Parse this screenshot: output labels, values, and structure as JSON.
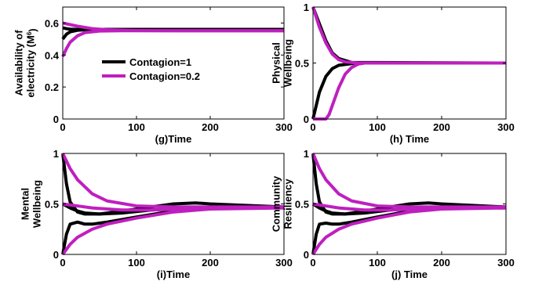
{
  "colors": {
    "contagion1": "#000000",
    "contagion02": "#bf1fbf"
  },
  "legend": {
    "items": [
      {
        "label": "Contagion=1",
        "color": "#000000"
      },
      {
        "label": "Contagion=0.2",
        "color": "#bf1fbf"
      }
    ]
  },
  "chart_data": [
    {
      "type": "line",
      "xlabel": "(g)Time",
      "ylabel_lines": [
        "Availability of",
        "electricity (M",
        "6",
        ")"
      ],
      "xlim": [
        0,
        300
      ],
      "ylim": [
        0,
        0.7
      ],
      "xticks": [
        0,
        100,
        200,
        300
      ],
      "yticks": [
        0,
        0.2,
        0.4,
        0.6
      ],
      "ytick_labels": [
        "0",
        "0.2",
        "0.4",
        "0.6"
      ],
      "legend_placement": "center",
      "series": [
        {
          "group": "Contagion=1",
          "color": "#000000",
          "x": [
            0,
            5,
            10,
            20,
            40,
            70,
            100,
            300
          ],
          "y": [
            0.5,
            0.53,
            0.545,
            0.555,
            0.56,
            0.56,
            0.56,
            0.56
          ]
        },
        {
          "group": "Contagion=1",
          "color": "#000000",
          "x": [
            0,
            5,
            10,
            20,
            40,
            70,
            100,
            300
          ],
          "y": [
            0.57,
            0.565,
            0.562,
            0.56,
            0.56,
            0.56,
            0.56,
            0.56
          ]
        },
        {
          "group": "Contagion=0.2",
          "color": "#bf1fbf",
          "x": [
            0,
            10,
            20,
            40,
            60,
            80,
            100,
            150,
            300
          ],
          "y": [
            0.6,
            0.59,
            0.58,
            0.565,
            0.558,
            0.555,
            0.553,
            0.552,
            0.552
          ]
        },
        {
          "group": "Contagion=0.2",
          "color": "#bf1fbf",
          "x": [
            0,
            5,
            10,
            20,
            30,
            50,
            80,
            120,
            300
          ],
          "y": [
            0.39,
            0.44,
            0.48,
            0.52,
            0.54,
            0.55,
            0.552,
            0.552,
            0.552
          ]
        }
      ]
    },
    {
      "type": "line",
      "xlabel": "(h) Time",
      "ylabel_lines": [
        "Physical",
        "Wellbeing"
      ],
      "xlim": [
        0,
        300
      ],
      "ylim": [
        0,
        1
      ],
      "xticks": [
        0,
        100,
        200,
        300
      ],
      "yticks": [
        0,
        0.5,
        1
      ],
      "ytick_labels": [
        "0",
        "0.5",
        "1"
      ],
      "series": [
        {
          "group": "Contagion=1",
          "color": "#000000",
          "x": [
            0,
            5,
            10,
            20,
            30,
            40,
            60,
            80,
            300
          ],
          "y": [
            0,
            0.12,
            0.24,
            0.38,
            0.45,
            0.48,
            0.495,
            0.5,
            0.5
          ]
        },
        {
          "group": "Contagion=1",
          "color": "#000000",
          "x": [
            0,
            10,
            20,
            30,
            40,
            60,
            300
          ],
          "y": [
            1,
            0.85,
            0.7,
            0.59,
            0.54,
            0.505,
            0.5
          ]
        },
        {
          "group": "Contagion=0.2",
          "color": "#bf1fbf",
          "x": [
            0,
            10,
            20,
            25,
            30,
            40,
            50,
            60,
            70,
            80,
            300
          ],
          "y": [
            0,
            0,
            0,
            0.04,
            0.12,
            0.28,
            0.4,
            0.46,
            0.49,
            0.5,
            0.5
          ]
        },
        {
          "group": "Contagion=0.2",
          "color": "#bf1fbf",
          "x": [
            0,
            10,
            20,
            30,
            40,
            50,
            70,
            300
          ],
          "y": [
            1,
            0.82,
            0.68,
            0.58,
            0.53,
            0.51,
            0.5,
            0.5
          ]
        }
      ]
    },
    {
      "type": "line",
      "xlabel": "(i)Time",
      "ylabel_lines": [
        "Mental",
        "Wellbeing"
      ],
      "xlim": [
        0,
        300
      ],
      "ylim": [
        0,
        1
      ],
      "xticks": [
        0,
        100,
        200,
        300
      ],
      "yticks": [
        0,
        0.5,
        1
      ],
      "ytick_labels": [
        "0",
        "0.5",
        "1"
      ],
      "series": [
        {
          "group": "Contagion=1",
          "color": "#000000",
          "x": [
            0,
            5,
            10,
            20,
            30,
            40,
            60,
            100,
            150,
            200,
            300
          ],
          "y": [
            0,
            0.2,
            0.3,
            0.32,
            0.3,
            0.3,
            0.32,
            0.37,
            0.43,
            0.47,
            0.46
          ]
        },
        {
          "group": "Contagion=1",
          "color": "#000000",
          "x": [
            0,
            5,
            10,
            20,
            30,
            50,
            100,
            150,
            180,
            200,
            300
          ],
          "y": [
            1,
            0.7,
            0.52,
            0.42,
            0.4,
            0.4,
            0.45,
            0.5,
            0.51,
            0.5,
            0.47
          ]
        },
        {
          "group": "Contagion=1",
          "color": "#000000",
          "x": [
            0,
            10,
            20,
            30,
            50,
            80,
            120,
            200,
            300
          ],
          "y": [
            0.5,
            0.46,
            0.43,
            0.41,
            0.4,
            0.41,
            0.44,
            0.47,
            0.47
          ]
        },
        {
          "group": "Contagion=0.2",
          "color": "#bf1fbf",
          "x": [
            0,
            10,
            20,
            40,
            60,
            100,
            150,
            200,
            300
          ],
          "y": [
            0,
            0.1,
            0.17,
            0.25,
            0.3,
            0.36,
            0.42,
            0.45,
            0.46
          ]
        },
        {
          "group": "Contagion=0.2",
          "color": "#bf1fbf",
          "x": [
            0,
            10,
            20,
            40,
            60,
            100,
            150,
            200,
            300
          ],
          "y": [
            1,
            0.85,
            0.74,
            0.6,
            0.53,
            0.48,
            0.47,
            0.47,
            0.47
          ]
        },
        {
          "group": "Contagion=0.2",
          "color": "#bf1fbf",
          "x": [
            0,
            20,
            40,
            80,
            120,
            200,
            300
          ],
          "y": [
            0.5,
            0.48,
            0.46,
            0.44,
            0.44,
            0.46,
            0.47
          ]
        }
      ]
    },
    {
      "type": "line",
      "xlabel": "(j) Time",
      "ylabel_lines": [
        "Community",
        "Resiliency"
      ],
      "xlim": [
        0,
        300
      ],
      "ylim": [
        0,
        1
      ],
      "xticks": [
        0,
        100,
        200,
        300
      ],
      "yticks": [
        0,
        0.5,
        1
      ],
      "ytick_labels": [
        "0",
        "0.5",
        "1"
      ],
      "series": [
        {
          "group": "Contagion=1",
          "color": "#000000",
          "x": [
            0,
            5,
            10,
            20,
            30,
            40,
            60,
            100,
            150,
            200,
            300
          ],
          "y": [
            0,
            0.2,
            0.3,
            0.31,
            0.3,
            0.3,
            0.32,
            0.37,
            0.43,
            0.47,
            0.46
          ]
        },
        {
          "group": "Contagion=1",
          "color": "#000000",
          "x": [
            0,
            5,
            10,
            20,
            30,
            50,
            100,
            150,
            180,
            200,
            300
          ],
          "y": [
            1,
            0.7,
            0.52,
            0.42,
            0.4,
            0.4,
            0.45,
            0.5,
            0.51,
            0.5,
            0.47
          ]
        },
        {
          "group": "Contagion=1",
          "color": "#000000",
          "x": [
            0,
            10,
            20,
            30,
            50,
            80,
            120,
            200,
            300
          ],
          "y": [
            0.5,
            0.46,
            0.43,
            0.41,
            0.4,
            0.41,
            0.44,
            0.47,
            0.47
          ]
        },
        {
          "group": "Contagion=0.2",
          "color": "#bf1fbf",
          "x": [
            0,
            10,
            20,
            40,
            60,
            100,
            150,
            200,
            300
          ],
          "y": [
            0,
            0.1,
            0.17,
            0.25,
            0.3,
            0.36,
            0.42,
            0.45,
            0.46
          ]
        },
        {
          "group": "Contagion=0.2",
          "color": "#bf1fbf",
          "x": [
            0,
            10,
            20,
            40,
            60,
            100,
            150,
            200,
            300
          ],
          "y": [
            1,
            0.85,
            0.74,
            0.6,
            0.53,
            0.48,
            0.47,
            0.47,
            0.47
          ]
        },
        {
          "group": "Contagion=0.2",
          "color": "#bf1fbf",
          "x": [
            0,
            20,
            40,
            80,
            120,
            200,
            300
          ],
          "y": [
            0.5,
            0.48,
            0.46,
            0.44,
            0.44,
            0.46,
            0.47
          ]
        }
      ]
    }
  ]
}
